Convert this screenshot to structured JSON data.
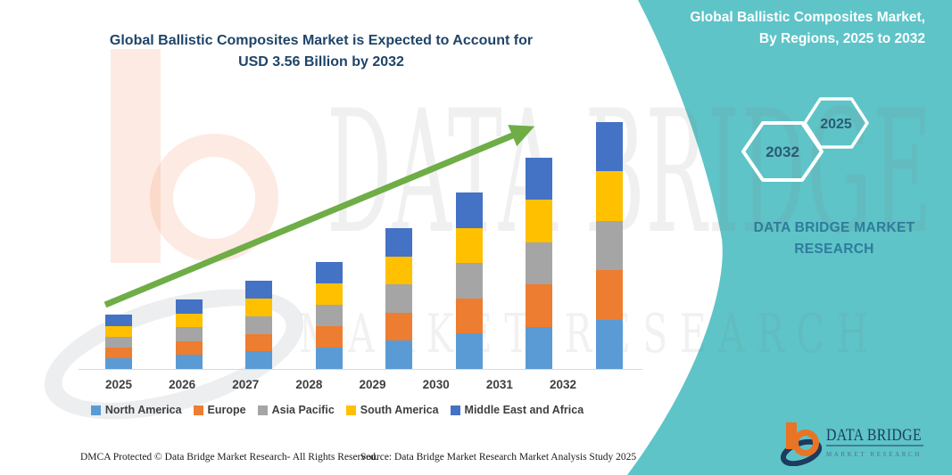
{
  "header": {
    "title_line1": "Global Ballistic Composites Market is Expected to Account for",
    "title_line2": "USD 3.56 Billion by 2032"
  },
  "side_panel": {
    "panel_color": "#5EC4C8",
    "title_line1": "Global Ballistic Composites Market,",
    "title_line2": "By Regions, 2025 to 2032",
    "hexagons": [
      {
        "label": "2032"
      },
      {
        "label": "2025"
      }
    ],
    "brand_line1": "DATA BRIDGE MARKET",
    "brand_line2": "RESEARCH"
  },
  "chart_data": {
    "type": "bar",
    "stacked": true,
    "title": "Global Ballistic Composites Market is Expected to Account for USD 3.56 Billion by 2032",
    "unit": "USD Billion",
    "x": [
      "2025",
      "2026",
      "2027",
      "2028",
      "2029",
      "2030",
      "2031",
      "2032"
    ],
    "series": [
      {
        "name": "North America",
        "color": "#5B9BD5",
        "values": [
          0.156,
          0.2,
          0.254,
          0.308,
          0.406,
          0.508,
          0.61,
          0.712
        ]
      },
      {
        "name": "Europe",
        "color": "#ED7D31",
        "values": [
          0.156,
          0.2,
          0.254,
          0.308,
          0.406,
          0.508,
          0.61,
          0.712
        ]
      },
      {
        "name": "Asia Pacific",
        "color": "#A5A5A5",
        "values": [
          0.156,
          0.2,
          0.254,
          0.308,
          0.406,
          0.508,
          0.61,
          0.712
        ]
      },
      {
        "name": "South America",
        "color": "#FFC000",
        "values": [
          0.156,
          0.2,
          0.254,
          0.308,
          0.406,
          0.508,
          0.61,
          0.712
        ]
      },
      {
        "name": "Middle East and Africa",
        "color": "#4472C4",
        "values": [
          0.156,
          0.2,
          0.254,
          0.308,
          0.406,
          0.508,
          0.61,
          0.712
        ]
      }
    ],
    "totals": [
      0.78,
      1.0,
      1.27,
      1.54,
      2.03,
      2.54,
      3.05,
      3.56
    ],
    "ylim": [
      0,
      3.65
    ],
    "gridlines": false,
    "legend_position": "bottom",
    "trend_arrow": true,
    "trend_color": "#6FAD47"
  },
  "watermark": {
    "line1": "DATA BRIDGE",
    "line2": "MARKET RESEARCH"
  },
  "footer": {
    "dmca": "DMCA Protected © Data Bridge Market Research-  All Rights Reserved.",
    "source": "Source: Data Bridge Market Research  Market Analysis Study 2025"
  },
  "logo": {
    "brand": "DATA BRIDGE",
    "tagline": "MARKET RESEARCH"
  }
}
